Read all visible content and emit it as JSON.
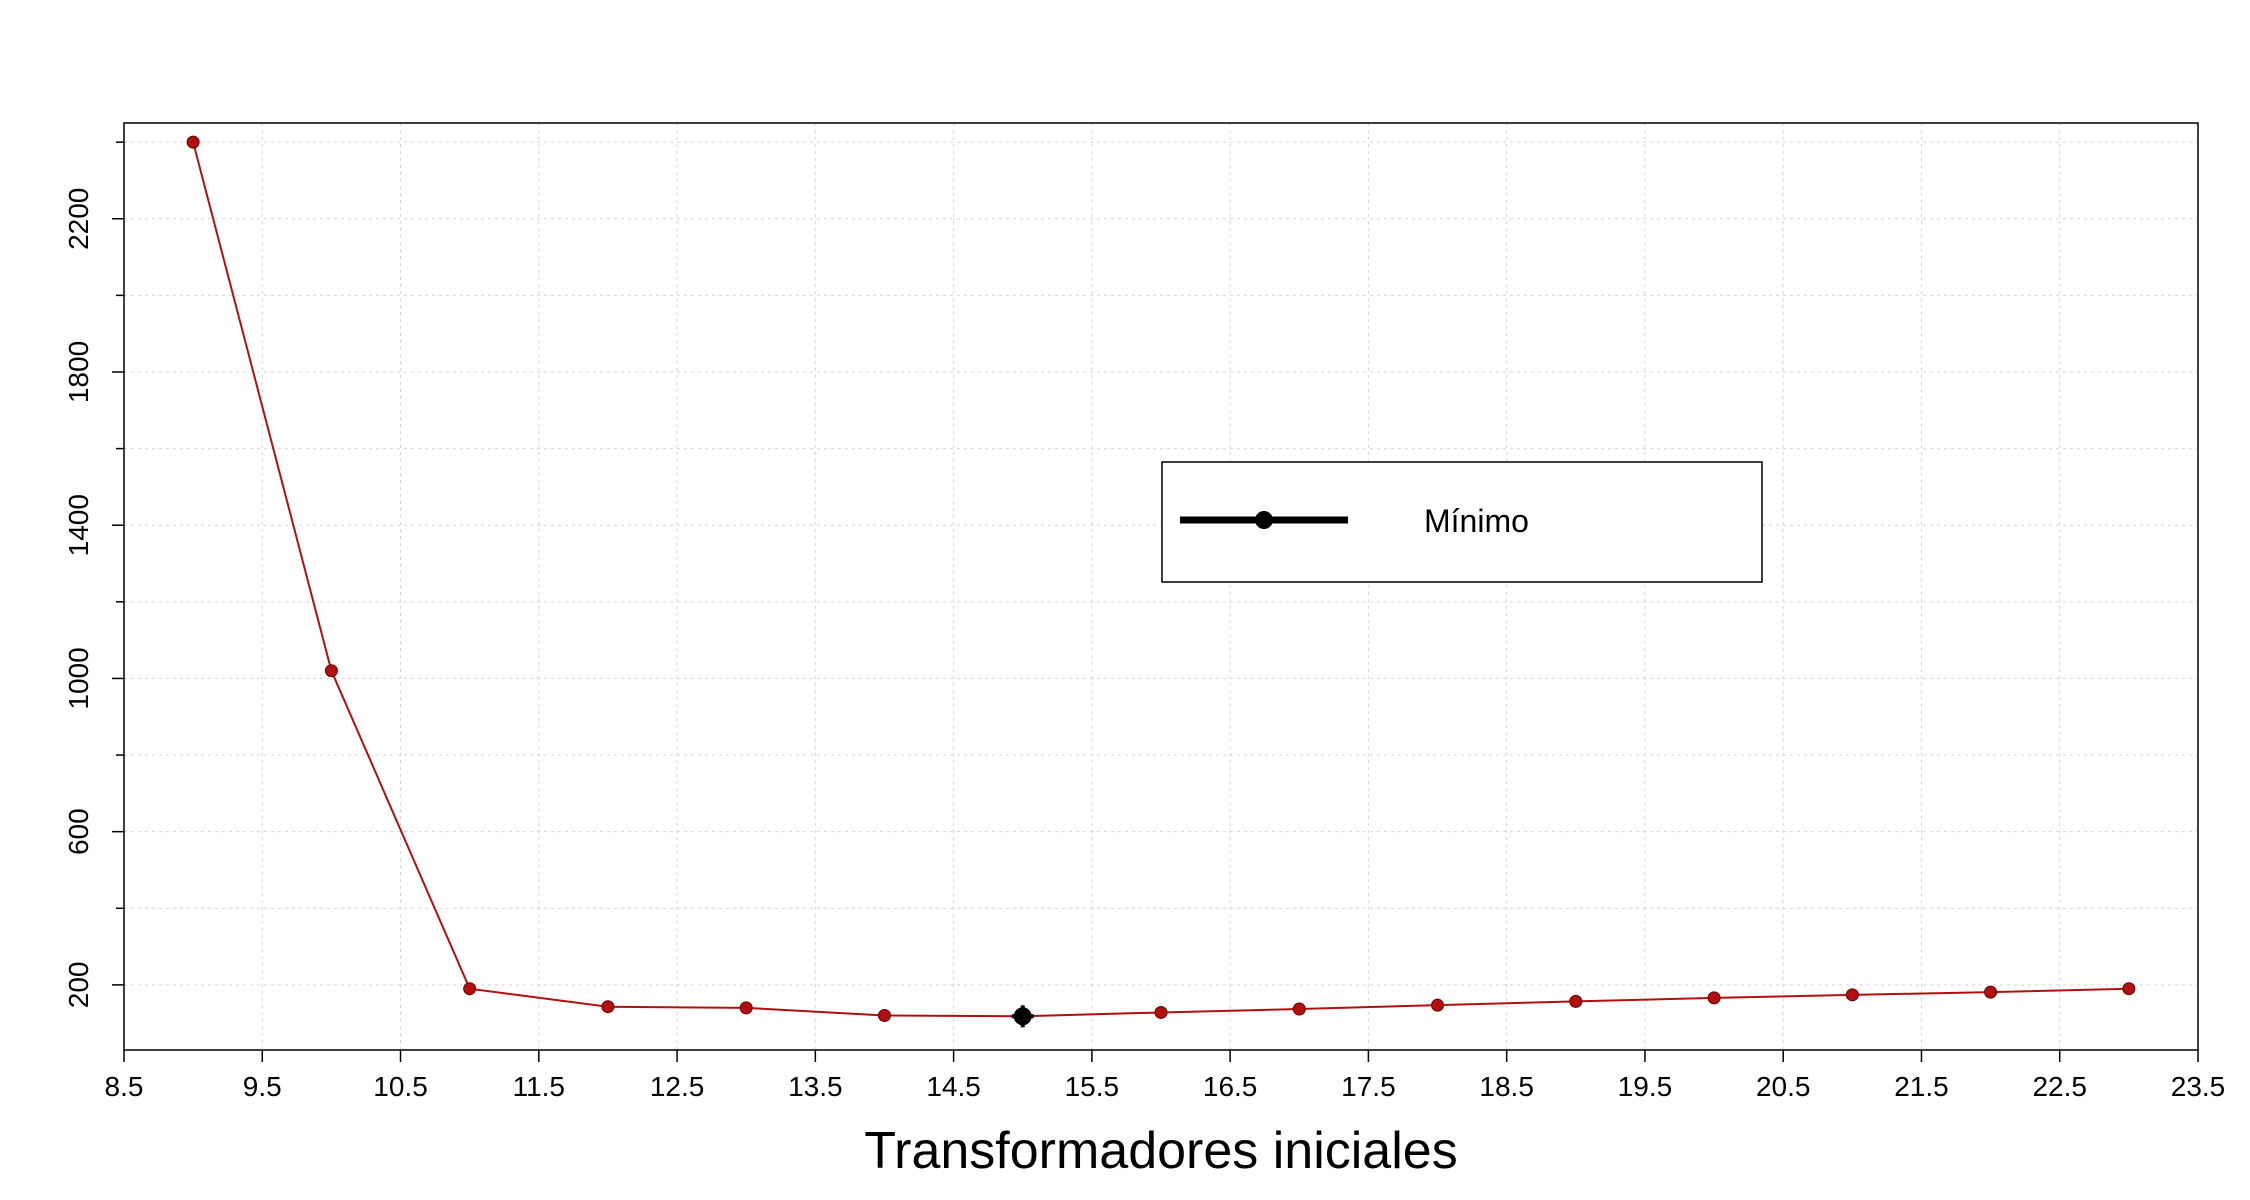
{
  "chart_data": {
    "type": "line",
    "xlabel": "Transformadores iniciales",
    "ylabel": "",
    "xlim": [
      8.5,
      23.5
    ],
    "ylim": [
      30,
      2450
    ],
    "x_ticks": [
      8.5,
      9.5,
      10.5,
      11.5,
      12.5,
      13.5,
      14.5,
      15.5,
      16.5,
      17.5,
      18.5,
      19.5,
      20.5,
      21.5,
      22.5,
      23.5
    ],
    "x_tick_labels": [
      "8.5",
      "9.5",
      "10.5",
      "11.5",
      "12.5",
      "13.5",
      "14.5",
      "15.5",
      "16.5",
      "17.5",
      "18.5",
      "19.5",
      "20.5",
      "21.5",
      "22.5",
      "23.5"
    ],
    "y_ticks_labeled": [
      200,
      600,
      1000,
      1400,
      1800,
      2200
    ],
    "y_tick_labels": [
      "200",
      "600",
      "1000",
      "1400",
      "1800",
      "2200"
    ],
    "y_minor_ticks": [
      400,
      800,
      1200,
      1600,
      2000,
      2400
    ],
    "grid": true,
    "series": [
      {
        "x": [
          9,
          10,
          11,
          12,
          13,
          14,
          15,
          16,
          17,
          18,
          19,
          20,
          21,
          22,
          23
        ],
        "values": [
          2400,
          1020,
          190,
          143,
          140,
          120,
          118,
          128,
          137,
          147,
          157,
          166,
          174,
          181,
          190
        ],
        "color": "#b01010"
      }
    ],
    "highlight": {
      "x": 15,
      "y": 118,
      "color": "#000000"
    },
    "legend": {
      "placement": "center-right",
      "label": "Mínimo",
      "color": "#000000"
    }
  }
}
